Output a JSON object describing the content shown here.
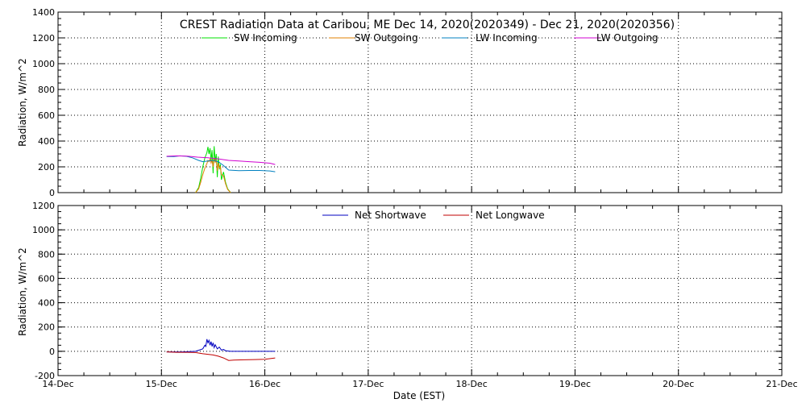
{
  "chart_data": [
    {
      "type": "line",
      "title": "CREST Radiation Data at Caribou, ME   Dec 14, 2020(2020349) - Dec 21, 2020(2020356)",
      "ylabel": "Radiation, W/m^2",
      "xlabel": "",
      "ylim": [
        0,
        1400
      ],
      "yticks": [
        0,
        200,
        400,
        600,
        800,
        1000,
        1200,
        1400
      ],
      "xlim": [
        "2020-12-14",
        "2020-12-21"
      ],
      "xticks": [
        "14-Dec",
        "15-Dec",
        "16-Dec",
        "17-Dec",
        "18-Dec",
        "19-Dec",
        "20-Dec",
        "21-Dec"
      ],
      "grid": true,
      "legend_position": "top-center",
      "series": [
        {
          "name": "SW Incoming",
          "color": "#00e000",
          "points": [
            [
              1.33,
              0
            ],
            [
              1.36,
              40
            ],
            [
              1.38,
              110
            ],
            [
              1.4,
              200
            ],
            [
              1.42,
              270
            ],
            [
              1.44,
              310
            ],
            [
              1.45,
              355
            ],
            [
              1.46,
              300
            ],
            [
              1.47,
              345
            ],
            [
              1.48,
              250
            ],
            [
              1.49,
              330
            ],
            [
              1.5,
              150
            ],
            [
              1.51,
              360
            ],
            [
              1.52,
              240
            ],
            [
              1.53,
              300
            ],
            [
              1.54,
              120
            ],
            [
              1.55,
              280
            ],
            [
              1.56,
              180
            ],
            [
              1.57,
              220
            ],
            [
              1.58,
              100
            ],
            [
              1.6,
              160
            ],
            [
              1.62,
              80
            ],
            [
              1.64,
              30
            ],
            [
              1.67,
              0
            ]
          ]
        },
        {
          "name": "SW Outgoing",
          "color": "#e08000",
          "points": [
            [
              1.33,
              0
            ],
            [
              1.36,
              30
            ],
            [
              1.38,
              80
            ],
            [
              1.4,
              140
            ],
            [
              1.42,
              190
            ],
            [
              1.44,
              225
            ],
            [
              1.45,
              250
            ],
            [
              1.46,
              240
            ],
            [
              1.47,
              260
            ],
            [
              1.48,
              230
            ],
            [
              1.49,
              255
            ],
            [
              1.5,
              200
            ],
            [
              1.51,
              265
            ],
            [
              1.52,
              235
            ],
            [
              1.53,
              250
            ],
            [
              1.54,
              170
            ],
            [
              1.55,
              230
            ],
            [
              1.56,
              190
            ],
            [
              1.57,
              200
            ],
            [
              1.58,
              140
            ],
            [
              1.6,
              130
            ],
            [
              1.62,
              70
            ],
            [
              1.64,
              25
            ],
            [
              1.67,
              0
            ]
          ]
        },
        {
          "name": "LW Incoming",
          "color": "#0080c0",
          "points": [
            [
              1.05,
              280
            ],
            [
              1.12,
              280
            ],
            [
              1.18,
              285
            ],
            [
              1.24,
              282
            ],
            [
              1.3,
              270
            ],
            [
              1.36,
              250
            ],
            [
              1.4,
              240
            ],
            [
              1.45,
              245
            ],
            [
              1.5,
              250
            ],
            [
              1.55,
              240
            ],
            [
              1.6,
              210
            ],
            [
              1.65,
              175
            ],
            [
              1.75,
              170
            ],
            [
              1.85,
              172
            ],
            [
              1.95,
              172
            ],
            [
              2.05,
              168
            ],
            [
              2.1,
              162
            ]
          ]
        },
        {
          "name": "LW Outgoing",
          "color": "#d000d0",
          "points": [
            [
              1.05,
              282
            ],
            [
              1.15,
              285
            ],
            [
              1.25,
              283
            ],
            [
              1.35,
              275
            ],
            [
              1.45,
              270
            ],
            [
              1.55,
              262
            ],
            [
              1.65,
              250
            ],
            [
              1.75,
              245
            ],
            [
              1.85,
              240
            ],
            [
              1.95,
              235
            ],
            [
              2.05,
              228
            ],
            [
              2.1,
              218
            ]
          ]
        }
      ]
    },
    {
      "type": "line",
      "title": "",
      "ylabel": "Radiation, W/m^2",
      "xlabel": "Date (EST)",
      "ylim": [
        -200,
        1200
      ],
      "yticks": [
        -200,
        0,
        200,
        400,
        600,
        800,
        1000,
        1200
      ],
      "xlim": [
        "2020-12-14",
        "2020-12-21"
      ],
      "xticks": [
        "14-Dec",
        "15-Dec",
        "16-Dec",
        "17-Dec",
        "18-Dec",
        "19-Dec",
        "20-Dec",
        "21-Dec"
      ],
      "grid": true,
      "legend_position": "top-center",
      "series": [
        {
          "name": "Net Shortwave",
          "color": "#0000c0",
          "points": [
            [
              1.05,
              -5
            ],
            [
              1.2,
              -5
            ],
            [
              1.33,
              0
            ],
            [
              1.4,
              20
            ],
            [
              1.42,
              50
            ],
            [
              1.43,
              40
            ],
            [
              1.44,
              100
            ],
            [
              1.45,
              70
            ],
            [
              1.46,
              90
            ],
            [
              1.47,
              50
            ],
            [
              1.48,
              80
            ],
            [
              1.49,
              40
            ],
            [
              1.5,
              70
            ],
            [
              1.51,
              30
            ],
            [
              1.52,
              55
            ],
            [
              1.54,
              20
            ],
            [
              1.56,
              35
            ],
            [
              1.58,
              10
            ],
            [
              1.6,
              15
            ],
            [
              1.62,
              5
            ],
            [
              1.67,
              0
            ],
            [
              1.85,
              0
            ],
            [
              2.0,
              0
            ],
            [
              2.1,
              0
            ]
          ]
        },
        {
          "name": "Net Longwave",
          "color": "#c00000",
          "points": [
            [
              1.05,
              -5
            ],
            [
              1.15,
              -8
            ],
            [
              1.25,
              -8
            ],
            [
              1.33,
              -10
            ],
            [
              1.4,
              -20
            ],
            [
              1.45,
              -25
            ],
            [
              1.5,
              -30
            ],
            [
              1.55,
              -40
            ],
            [
              1.6,
              -55
            ],
            [
              1.65,
              -75
            ],
            [
              1.7,
              -72
            ],
            [
              1.8,
              -70
            ],
            [
              1.9,
              -68
            ],
            [
              2.0,
              -65
            ],
            [
              2.1,
              -55
            ]
          ]
        }
      ]
    }
  ]
}
